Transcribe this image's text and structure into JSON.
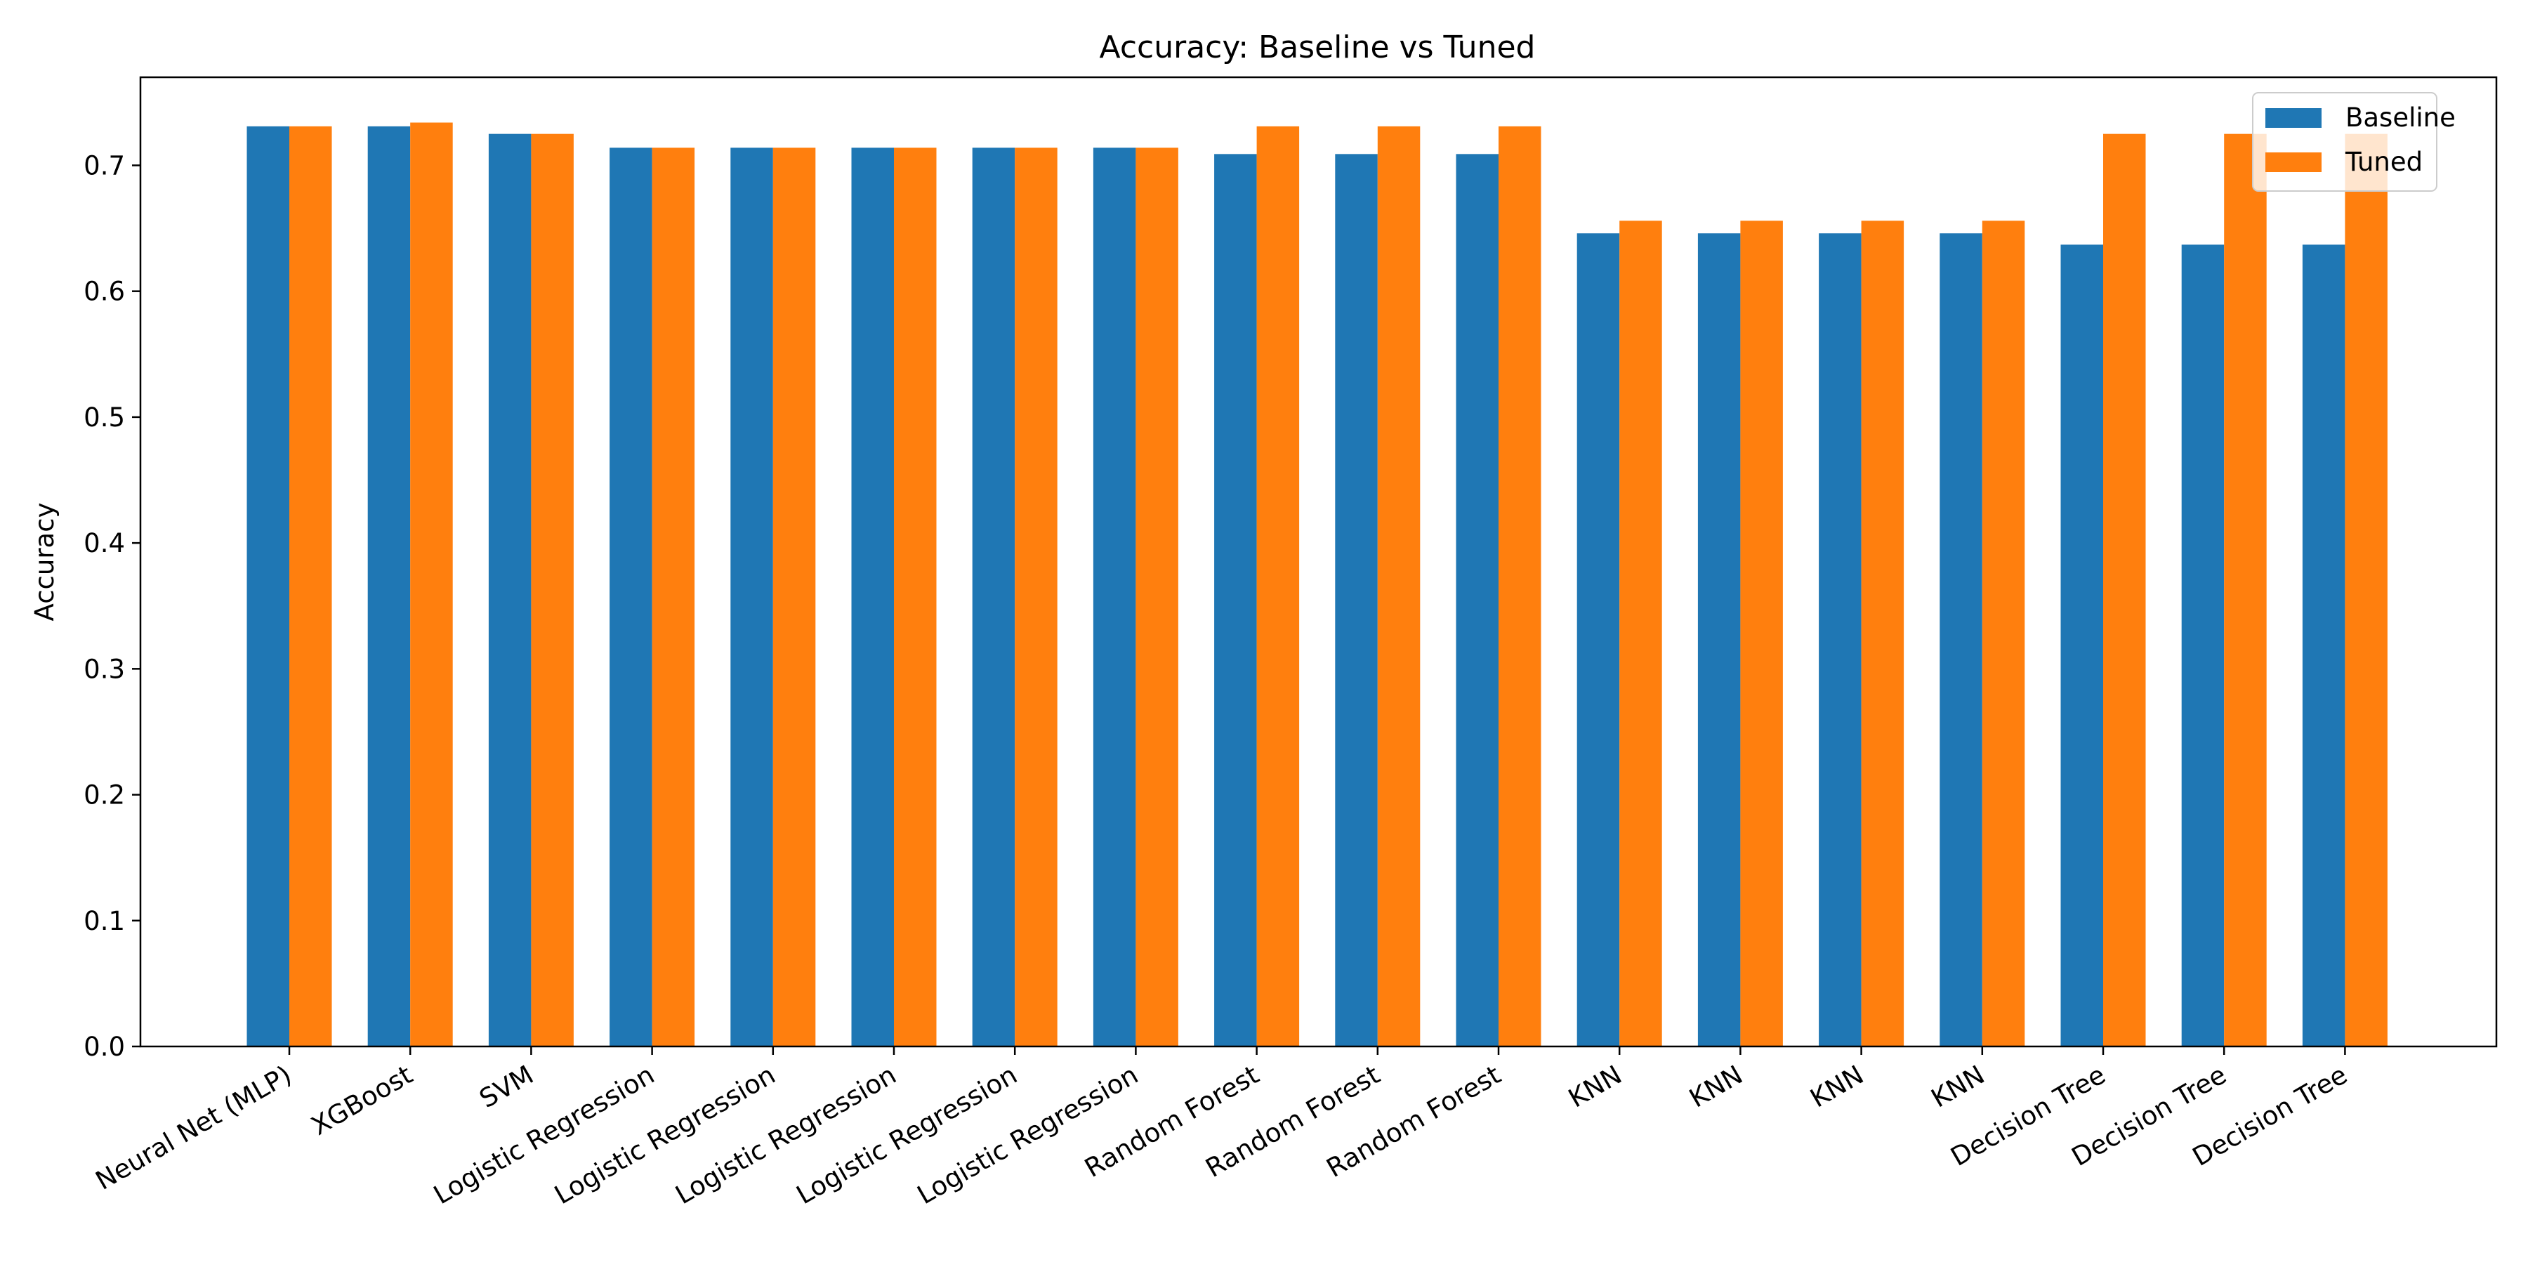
{
  "chart_data": {
    "type": "bar",
    "title": "Accuracy: Baseline vs Tuned",
    "xlabel": "",
    "ylabel": "Accuracy",
    "ylim": [
      0,
      0.77
    ],
    "yticks": [
      0.0,
      0.1,
      0.2,
      0.3,
      0.4,
      0.5,
      0.6,
      0.7
    ],
    "ytick_labels": [
      "0.0",
      "0.1",
      "0.2",
      "0.3",
      "0.4",
      "0.5",
      "0.6",
      "0.7"
    ],
    "grid": false,
    "legend_position": "top-right",
    "categories": [
      "Neural Net (MLP)",
      "XGBoost",
      "SVM",
      "Logistic Regression",
      "Logistic Regression",
      "Logistic Regression",
      "Logistic Regression",
      "Logistic Regression",
      "Random Forest",
      "Random Forest",
      "Random Forest",
      "KNN",
      "KNN",
      "KNN",
      "KNN",
      "Decision Tree",
      "Decision Tree",
      "Decision Tree"
    ],
    "series": [
      {
        "name": "Baseline",
        "color": "#1f77b4",
        "values": [
          0.731,
          0.731,
          0.725,
          0.714,
          0.714,
          0.714,
          0.714,
          0.714,
          0.709,
          0.709,
          0.709,
          0.646,
          0.646,
          0.646,
          0.646,
          0.637,
          0.637,
          0.637
        ]
      },
      {
        "name": "Tuned",
        "color": "#ff7f0e",
        "values": [
          0.731,
          0.734,
          0.725,
          0.714,
          0.714,
          0.714,
          0.714,
          0.714,
          0.731,
          0.731,
          0.731,
          0.656,
          0.656,
          0.656,
          0.656,
          0.725,
          0.725,
          0.725
        ]
      }
    ]
  }
}
